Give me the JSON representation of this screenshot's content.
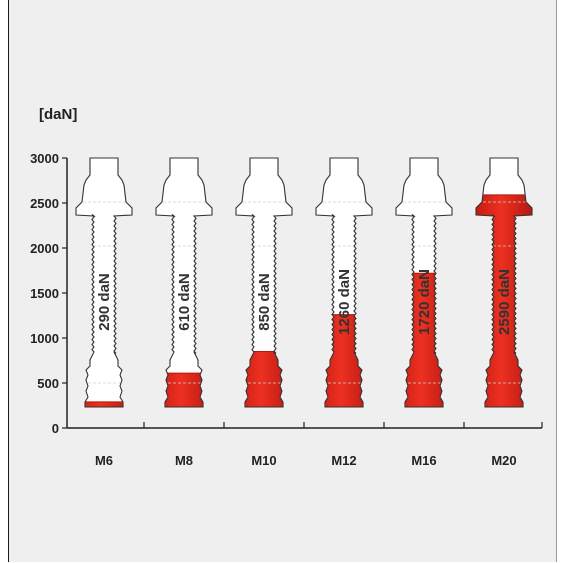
{
  "chart_data": {
    "type": "bar",
    "unit_label": "[daN]",
    "categories": [
      "M6",
      "M8",
      "M10",
      "M12",
      "M16",
      "M20"
    ],
    "values": [
      290,
      610,
      850,
      1260,
      1720,
      2590
    ],
    "value_labels": [
      "290 daN",
      "610 daN",
      "850 daN",
      "1260 daN",
      "1720 daN",
      "2590 daN"
    ],
    "y_ticks": [
      0,
      500,
      1000,
      1500,
      2000,
      2500,
      3000
    ],
    "ylim": [
      0,
      3000
    ],
    "grid": false,
    "bar_shape": "threaded anchor bolt",
    "colors": {
      "fill": "#e8291c",
      "fill_dark": "#b3180f",
      "bolt": "#ffffff",
      "outline": "#333333",
      "background": "#efefef"
    }
  }
}
